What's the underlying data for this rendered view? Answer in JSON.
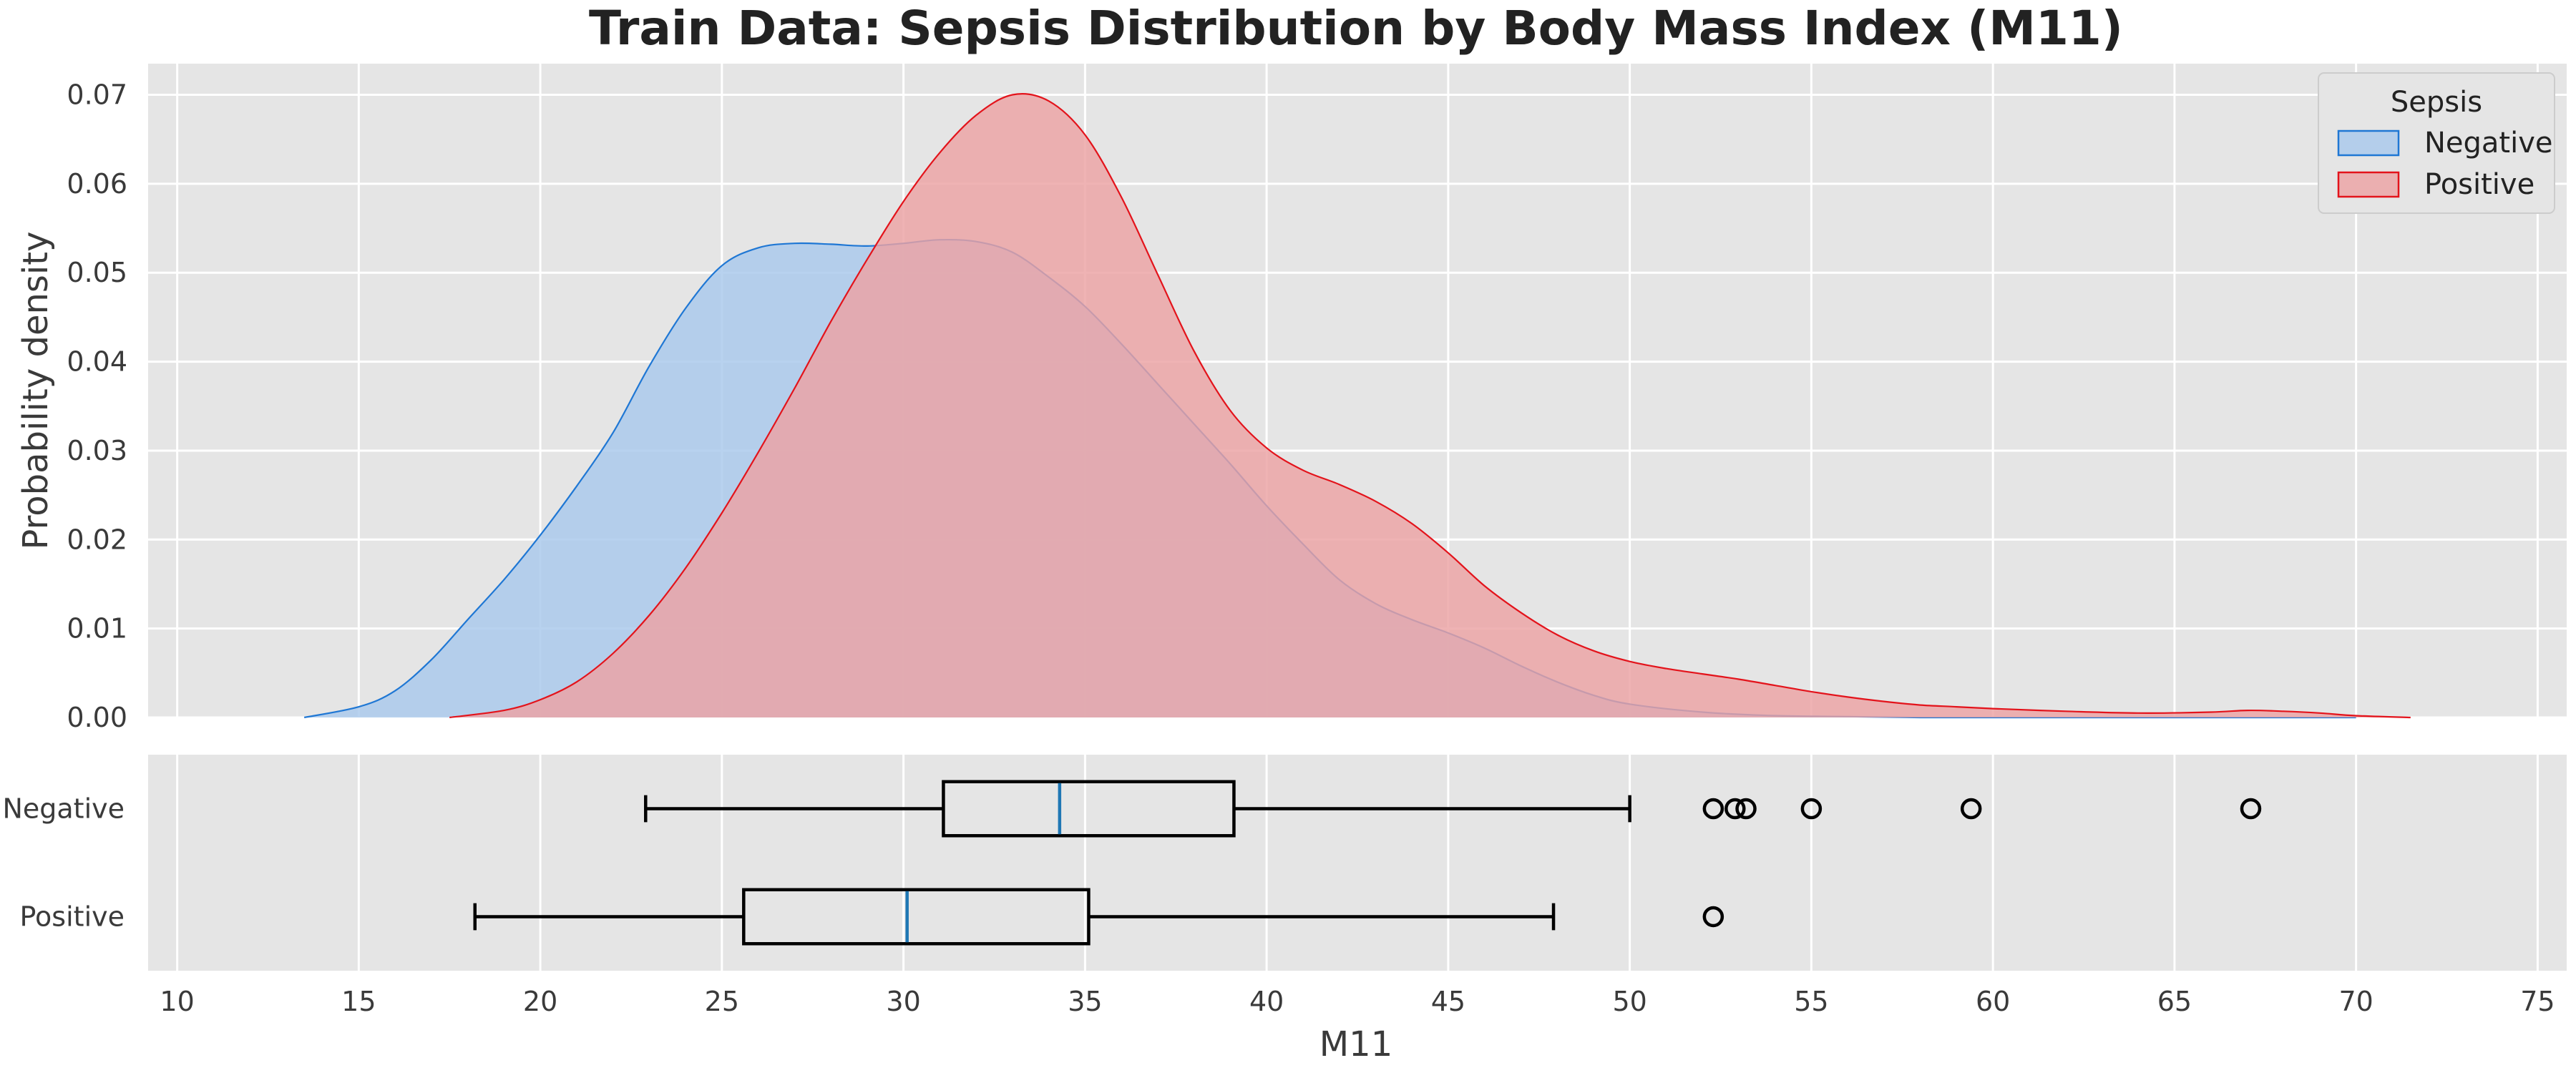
{
  "chart_data": [
    {
      "type": "area",
      "subtype": "kde",
      "title": "Train Data: Sepsis Distribution by Body Mass Index (M11)",
      "ylabel": "Probability density",
      "ylim": [
        0,
        0.0735
      ],
      "xlim": [
        9.2,
        75.8
      ],
      "y_ticks": [
        "0.00",
        "0.01",
        "0.02",
        "0.03",
        "0.04",
        "0.05",
        "0.06",
        "0.07"
      ],
      "y_tick_values": [
        0,
        0.01,
        0.02,
        0.03,
        0.04,
        0.05,
        0.06,
        0.07
      ],
      "grid": true,
      "legend": {
        "title": "Sepsis",
        "placement": "top-right"
      },
      "series": [
        {
          "name": "Negative",
          "color": "#1f77d4",
          "fill": "#a8c8ec",
          "x": [
            13.5,
            15,
            16,
            17,
            18,
            19,
            20,
            21,
            22,
            23,
            24,
            25,
            26,
            27,
            28,
            29,
            30,
            31,
            32,
            33,
            34,
            35,
            36,
            37,
            38,
            39,
            40,
            41,
            42,
            43,
            44,
            45,
            46,
            47,
            48,
            49,
            50,
            52,
            54,
            56,
            58,
            60,
            62,
            64,
            66,
            68,
            70
          ],
          "y": [
            0.0,
            0.0012,
            0.003,
            0.0065,
            0.011,
            0.0155,
            0.0205,
            0.026,
            0.032,
            0.0395,
            0.046,
            0.0508,
            0.0528,
            0.0533,
            0.0532,
            0.053,
            0.0533,
            0.0537,
            0.0535,
            0.0523,
            0.0495,
            0.0462,
            0.042,
            0.0375,
            0.033,
            0.0285,
            0.0238,
            0.0195,
            0.0155,
            0.0128,
            0.011,
            0.0095,
            0.0078,
            0.0058,
            0.004,
            0.0025,
            0.0015,
            0.0006,
            0.0002,
            0.0001,
            0.0,
            0.0,
            0.0,
            0.0,
            0.0,
            0.0,
            0.0
          ]
        },
        {
          "name": "Positive",
          "color": "#e3131b",
          "fill": "#eca2a4",
          "x": [
            17.5,
            19,
            20,
            21,
            22,
            23,
            24,
            25,
            26,
            27,
            28,
            29,
            30,
            31,
            32,
            33,
            34,
            35,
            36,
            37,
            38,
            39,
            40,
            41,
            42,
            43,
            44,
            45,
            46,
            47,
            48,
            49,
            50,
            51,
            52,
            53,
            54,
            55,
            56,
            57,
            58,
            59,
            60,
            62,
            64,
            66,
            67,
            68,
            69,
            70,
            71.5
          ],
          "y": [
            0.0,
            0.0008,
            0.002,
            0.004,
            0.0072,
            0.0115,
            0.0168,
            0.023,
            0.0298,
            0.037,
            0.0445,
            0.0515,
            0.058,
            0.0635,
            0.0677,
            0.07,
            0.0693,
            0.0655,
            0.0585,
            0.0498,
            0.0412,
            0.0345,
            0.0303,
            0.0278,
            0.0262,
            0.0243,
            0.0218,
            0.0185,
            0.0148,
            0.0118,
            0.0093,
            0.0075,
            0.0063,
            0.0055,
            0.0049,
            0.0043,
            0.0036,
            0.0029,
            0.0023,
            0.0018,
            0.0014,
            0.0012,
            0.001,
            0.0007,
            0.0005,
            0.0006,
            0.0008,
            0.0007,
            0.0005,
            0.0002,
            0.0
          ]
        }
      ]
    },
    {
      "type": "box",
      "xlabel": "M11",
      "xlim": [
        9.2,
        75.8
      ],
      "x_ticks": [
        "10",
        "15",
        "20",
        "25",
        "30",
        "35",
        "40",
        "45",
        "50",
        "55",
        "60",
        "65",
        "70",
        "75"
      ],
      "x_tick_values": [
        10,
        15,
        20,
        25,
        30,
        35,
        40,
        45,
        50,
        55,
        60,
        65,
        70,
        75
      ],
      "grid": true,
      "median_color": "#1f77b4",
      "categories": [
        "Negative",
        "Positive"
      ],
      "boxes": [
        {
          "name": "Negative",
          "whisker_low": 22.9,
          "q1": 31.1,
          "median": 34.3,
          "q3": 39.1,
          "whisker_high": 50.0,
          "outliers": [
            52.3,
            52.9,
            53.2,
            55.0,
            59.4,
            67.1
          ]
        },
        {
          "name": "Positive",
          "whisker_low": 18.2,
          "q1": 25.6,
          "median": 30.1,
          "q3": 35.1,
          "whisker_high": 47.9,
          "outliers": [
            52.3
          ]
        }
      ]
    }
  ]
}
